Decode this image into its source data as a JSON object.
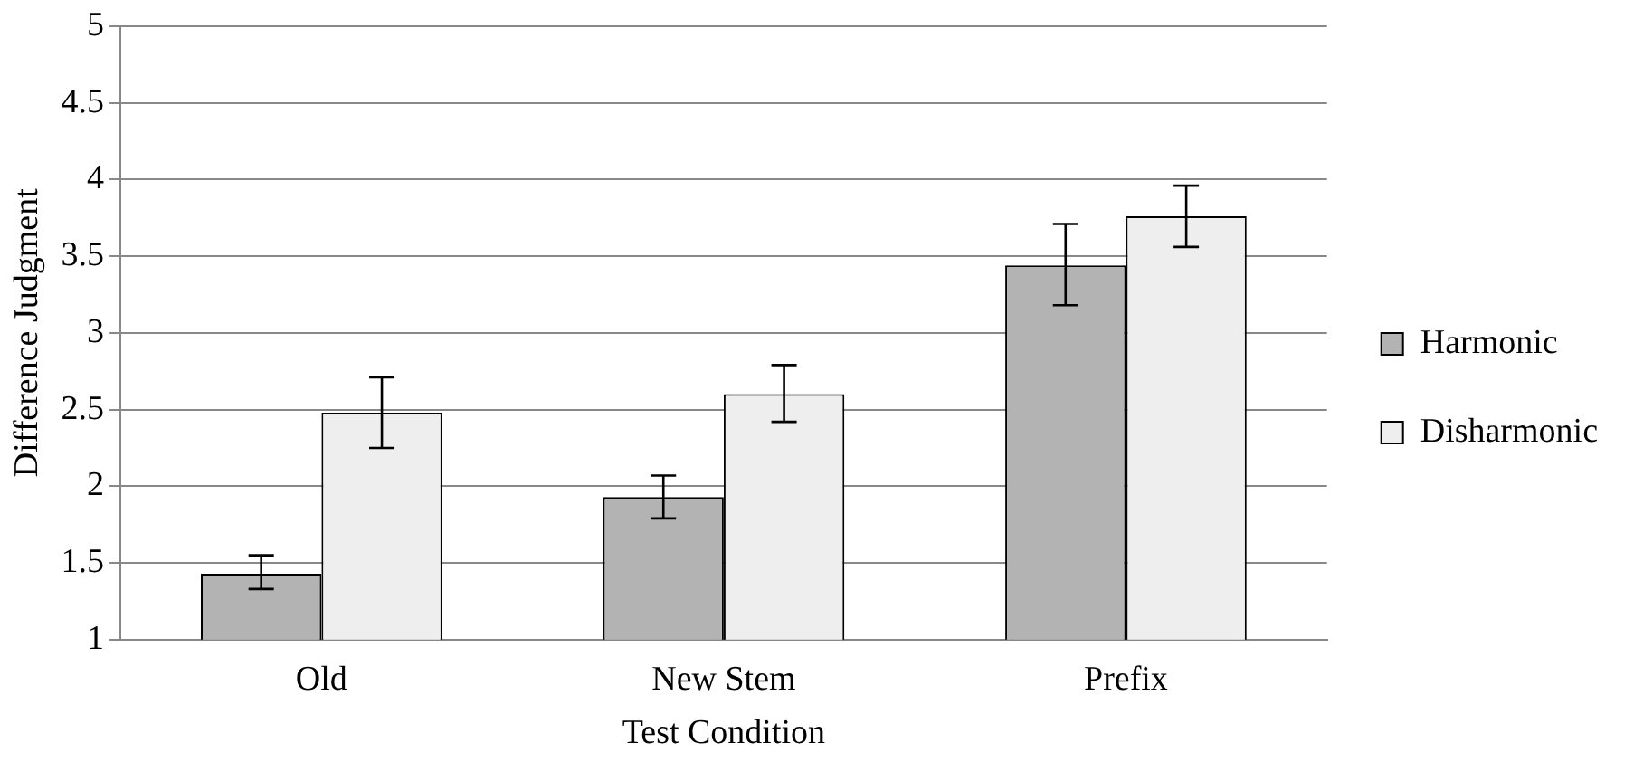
{
  "chart_data": {
    "type": "bar",
    "xlabel": "Test Condition",
    "ylabel": "Difference Judgment",
    "categories": [
      "Old",
      "New Stem",
      "Prefix"
    ],
    "series": [
      {
        "name": "Harmonic",
        "color": "#b3b3b3",
        "values": [
          1.43,
          1.93,
          3.44
        ],
        "errors": [
          [
            1.33,
            1.55
          ],
          [
            1.79,
            2.07
          ],
          [
            3.18,
            3.71
          ]
        ]
      },
      {
        "name": "Disharmonic",
        "color": "#eeeeee",
        "values": [
          2.48,
          2.6,
          3.76
        ],
        "errors": [
          [
            2.25,
            2.71
          ],
          [
            2.42,
            2.79
          ],
          [
            3.56,
            3.96
          ]
        ]
      }
    ],
    "ylim": [
      1,
      5
    ],
    "yticks": [
      1,
      1.5,
      2,
      2.5,
      3,
      3.5,
      4,
      4.5,
      5
    ],
    "grid": "y",
    "legend": "right"
  }
}
